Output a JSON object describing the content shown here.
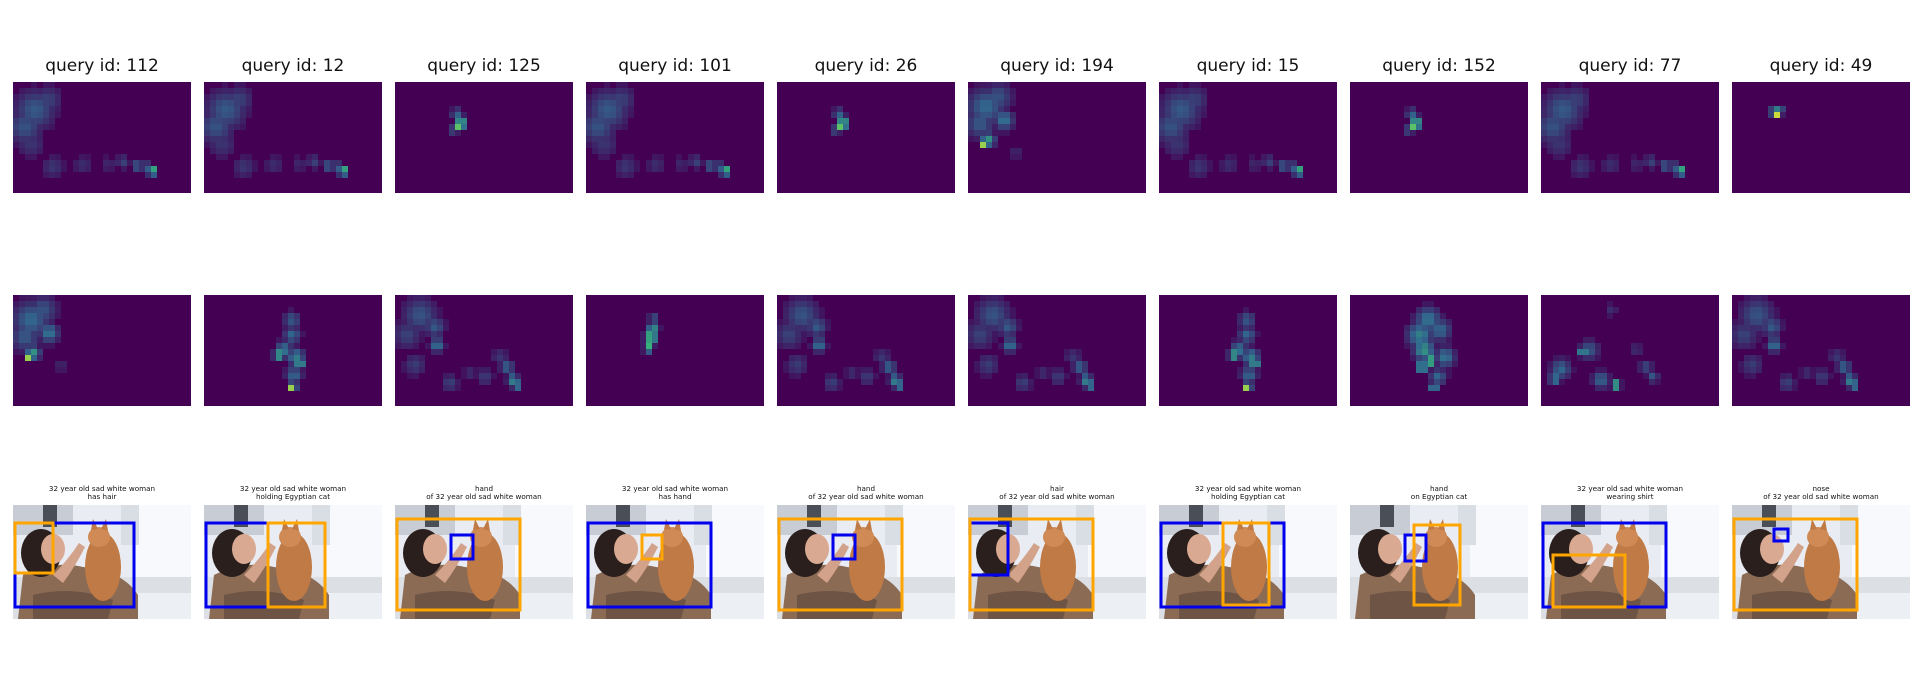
{
  "panels": [
    {
      "query": "query id: 112",
      "caption": [
        "32 year old sad white woman",
        "has hair"
      ],
      "subject_color": "blue",
      "object_color": "orange",
      "map1": "person-low-hand",
      "map2": "hair-bright"
    },
    {
      "query": "query id: 12",
      "caption": [
        "32 year old sad white woman",
        "holding Egyptian cat"
      ],
      "subject_color": "blue",
      "object_color": "orange",
      "map1": "person-low-hand",
      "map2": "cat"
    },
    {
      "query": "query id: 125",
      "caption": [
        "hand",
        "of 32 year old sad white woman"
      ],
      "subject_color": "blue",
      "object_color": "orange",
      "map1": "hand-spot",
      "map2": "person-hand"
    },
    {
      "query": "query id: 101",
      "caption": [
        "32 year old sad white woman",
        "has hand"
      ],
      "subject_color": "blue",
      "object_color": "orange",
      "map1": "person-low-hand",
      "map2": "hand-column"
    },
    {
      "query": "query id: 26",
      "caption": [
        "hand",
        "of 32 year old sad white woman"
      ],
      "subject_color": "blue",
      "object_color": "orange",
      "map1": "hand-spot",
      "map2": "person-hand"
    },
    {
      "query": "query id: 194",
      "caption": [
        "hair",
        "of 32 year old sad white woman"
      ],
      "subject_color": "blue",
      "object_color": "orange",
      "map1": "hair-bright",
      "map2": "person-hand"
    },
    {
      "query": "query id: 15",
      "caption": [
        "32 year old sad white woman",
        "holding Egyptian cat"
      ],
      "subject_color": "blue",
      "object_color": "orange",
      "map1": "person-low-hand",
      "map2": "cat"
    },
    {
      "query": "query id: 152",
      "caption": [
        "hand",
        "on Egyptian cat"
      ],
      "subject_color": "blue",
      "object_color": "orange",
      "map1": "hand-spot",
      "map2": "cat-wide"
    },
    {
      "query": "query id: 77",
      "caption": [
        "32 year old sad white woman",
        "wearing shirt"
      ],
      "subject_color": "blue",
      "object_color": "orange",
      "map1": "person-low-hand",
      "map2": "shirt"
    },
    {
      "query": "query id: 49",
      "caption": [
        "nose",
        "of 32 year old sad white woman"
      ],
      "subject_color": "blue",
      "object_color": "orange",
      "map1": "nose-spot",
      "map2": "person-hand"
    }
  ],
  "colors": {
    "heatmap_background": "#440154",
    "heatmap_mid": "#31688e",
    "heatmap_high": "#35b779",
    "heatmap_peak": "#fde725",
    "box_subject": "#0000ee",
    "box_object": "#ffa500"
  }
}
